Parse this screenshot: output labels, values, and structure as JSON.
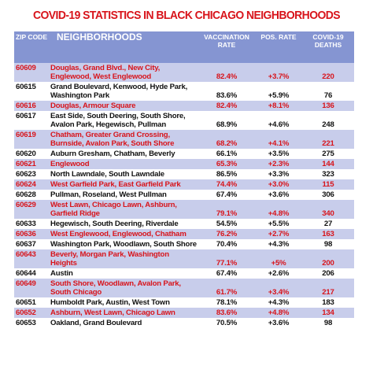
{
  "title": "COVID-19 STATISTICS IN BLACK CHICAGO NEIGHBORHOODS",
  "table": {
    "header": [
      "ZIP CODE",
      "NEIGHBORHOODS",
      "VACCINATION RATE",
      "POS. RATE",
      "COVID-19 DEATHS"
    ],
    "rows": [
      [
        "60609",
        "Douglas, Grand Blvd., New City, Englewood, West Englewood",
        "82.4%",
        "+3.7%",
        "220"
      ],
      [
        "60615",
        "Grand Boulevard, Kenwood, Hyde Park, Washington Park",
        "83.6%",
        "+5.9%",
        "76"
      ],
      [
        "60616",
        "Douglas, Armour Square",
        "82.4%",
        "+8.1%",
        "136"
      ],
      [
        "60617",
        "East Side, South Deering, South Shore, Avalon Park, Hegewisch, Pullman",
        "68.9%",
        "+4.6%",
        "248"
      ],
      [
        "60619",
        "Chatham, Greater Grand Crossing, Burnside, Avalon Park, South Shore",
        "68.2%",
        "+4.1%",
        "221"
      ],
      [
        "60620",
        "Auburn Gresham, Chatham, Beverly",
        "66.1%",
        "+3.5%",
        "275"
      ],
      [
        "60621",
        "Englewood",
        "65.3%",
        "+2.3%",
        "144"
      ],
      [
        "60623",
        "North Lawndale, South Lawndale",
        "86.5%",
        "+3.3%",
        "323"
      ],
      [
        "60624",
        "West Garfield Park, East Garfield Park",
        "74.4%",
        "+3.0%",
        "115"
      ],
      [
        "60628",
        "Pullman, Roseland, West Pullman",
        "67.4%",
        "+3.6%",
        "306"
      ],
      [
        "60629",
        "West Lawn, Chicago Lawn, Ashburn, Garfield Ridge",
        "79.1%",
        "+4.8%",
        "340"
      ],
      [
        "60633",
        "Hegewisch, South Deering, Riverdale",
        "54.5%",
        "+5.5%",
        "27"
      ],
      [
        "60636",
        "West Englewood, Englewood, Chatham",
        "76.2%",
        "+2.7%",
        "163"
      ],
      [
        "60637",
        "Washington Park, Woodlawn, South Shore",
        "70.4%",
        "+4.3%",
        "98"
      ],
      [
        "60643",
        "Beverly, Morgan Park, Washington Heights",
        "77.1%",
        "+5%",
        "200"
      ],
      [
        "60644",
        "Austin",
        "67.4%",
        "+2.6%",
        "206"
      ],
      [
        "60649",
        "South Shore, Woodlawn, Avalon Park, South Chicago",
        "61.7%",
        "+3.4%",
        "217"
      ],
      [
        "60651",
        "Humboldt Park, Austin, West Town",
        "78.1%",
        "+4.3%",
        "183"
      ],
      [
        "60652",
        "Ashburn, West Lawn, Chicago Lawn",
        "83.6%",
        "+4.8%",
        "134"
      ],
      [
        "60653",
        "Oakland, Grand Boulevard",
        "70.5%",
        "+3.6%",
        "98"
      ]
    ]
  }
}
